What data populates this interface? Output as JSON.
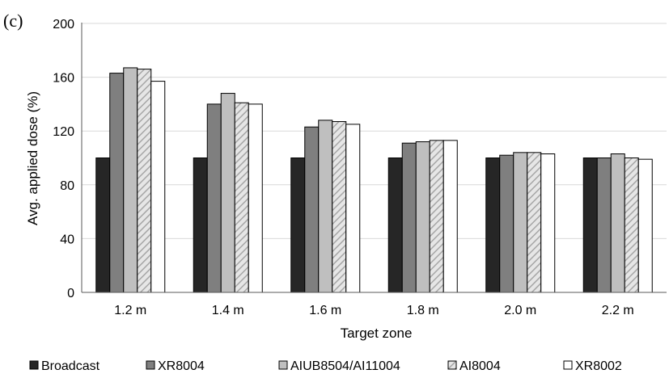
{
  "panel_label": "(c)",
  "chart_data": {
    "type": "bar",
    "title": "",
    "xlabel": "Target zone",
    "ylabel": "Avg. applied dose (%)",
    "ylim": [
      0,
      200
    ],
    "yticks": [
      0,
      40,
      80,
      120,
      160,
      200
    ],
    "grid": true,
    "legend_position": "bottom",
    "categories": [
      "1.2 m",
      "1.4 m",
      "1.6 m",
      "1.8 m",
      "2.0 m",
      "2.2 m"
    ],
    "series": [
      {
        "name": "Broadcast",
        "color": "#262626",
        "pattern": "solid",
        "values": [
          100,
          100,
          100,
          100,
          100,
          100
        ]
      },
      {
        "name": "XR8004",
        "color": "#7f7f7f",
        "pattern": "solid",
        "values": [
          163,
          140,
          123,
          111,
          102,
          100
        ]
      },
      {
        "name": "AIUB8504/AI11004",
        "color": "#bfbfbf",
        "pattern": "solid",
        "values": [
          167,
          148,
          128,
          112,
          104,
          103
        ]
      },
      {
        "name": "AI8004",
        "color": "#bfbfbf",
        "pattern": "hatch",
        "values": [
          166,
          141,
          127,
          113,
          104,
          100
        ]
      },
      {
        "name": "XR8002",
        "color": "#ffffff",
        "pattern": "solid",
        "values": [
          157,
          140,
          125,
          113,
          103,
          99
        ]
      }
    ]
  }
}
